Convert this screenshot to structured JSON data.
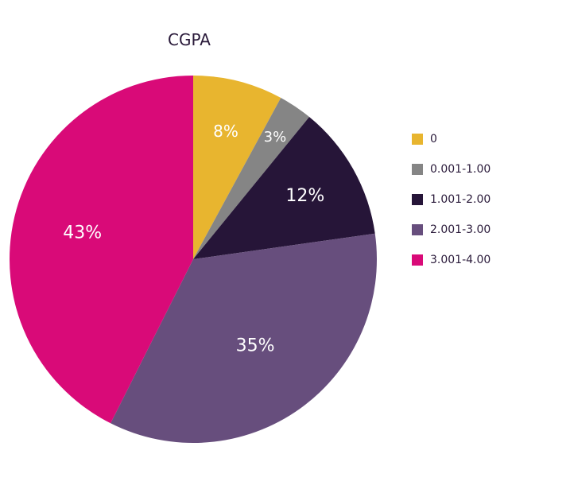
{
  "chart_data": {
    "type": "pie",
    "title": "CGPA",
    "categories": [
      "0",
      "0.001-1.00",
      "1.001-2.00",
      "2.001-3.00",
      "3.001-4.00"
    ],
    "values": [
      8,
      3,
      12,
      35,
      43
    ],
    "labels": [
      "8%",
      "3%",
      "12%",
      "35%",
      "43%"
    ],
    "colors": [
      "#e8b52f",
      "#858585",
      "#261538",
      "#674e7d",
      "#d90a78"
    ],
    "start_angle_deg": 0,
    "direction": "clockwise",
    "legend_position": "right"
  }
}
